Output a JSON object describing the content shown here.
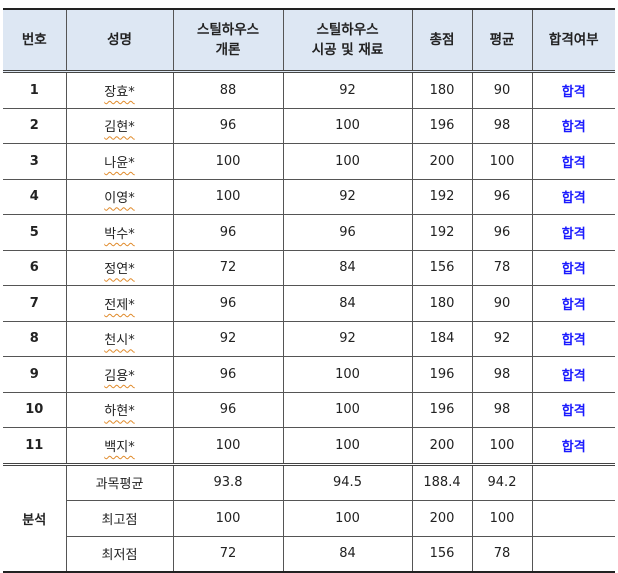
{
  "headers": [
    "번호",
    "성명",
    "스틸하우스\n개론",
    "스틸하우스\n시공 및 재료",
    "총점",
    "평균",
    "합격여부"
  ],
  "rows": [
    [
      "1",
      "장효*",
      "88",
      "92",
      "180",
      "90",
      "합격"
    ],
    [
      "2",
      "김현*",
      "96",
      "100",
      "196",
      "98",
      "합격"
    ],
    [
      "3",
      "나윤*",
      "100",
      "100",
      "200",
      "100",
      "합격"
    ],
    [
      "4",
      "이영*",
      "100",
      "92",
      "192",
      "96",
      "합격"
    ],
    [
      "5",
      "박수*",
      "96",
      "96",
      "192",
      "96",
      "합격"
    ],
    [
      "6",
      "정연*",
      "72",
      "84",
      "156",
      "78",
      "합격"
    ],
    [
      "7",
      "전제*",
      "96",
      "84",
      "180",
      "90",
      "합격"
    ],
    [
      "8",
      "천시*",
      "92",
      "92",
      "184",
      "92",
      "합격"
    ],
    [
      "9",
      "김용*",
      "96",
      "100",
      "196",
      "98",
      "합격"
    ],
    [
      "10",
      "하현*",
      "96",
      "100",
      "196",
      "98",
      "합격"
    ],
    [
      "11",
      "백지*",
      "100",
      "100",
      "200",
      "100",
      "합격"
    ]
  ],
  "analysis": {
    "label": "분석",
    "rows": [
      [
        "과목평균",
        "93.8",
        "94.5",
        "188.4",
        "94.2",
        ""
      ],
      [
        "최고점",
        "100",
        "100",
        "200",
        "100",
        ""
      ],
      [
        "최저점",
        "72",
        "84",
        "156",
        "78",
        ""
      ]
    ]
  },
  "colors": {
    "header_bg": "#dde7f3",
    "pass": "#1a1aff"
  }
}
